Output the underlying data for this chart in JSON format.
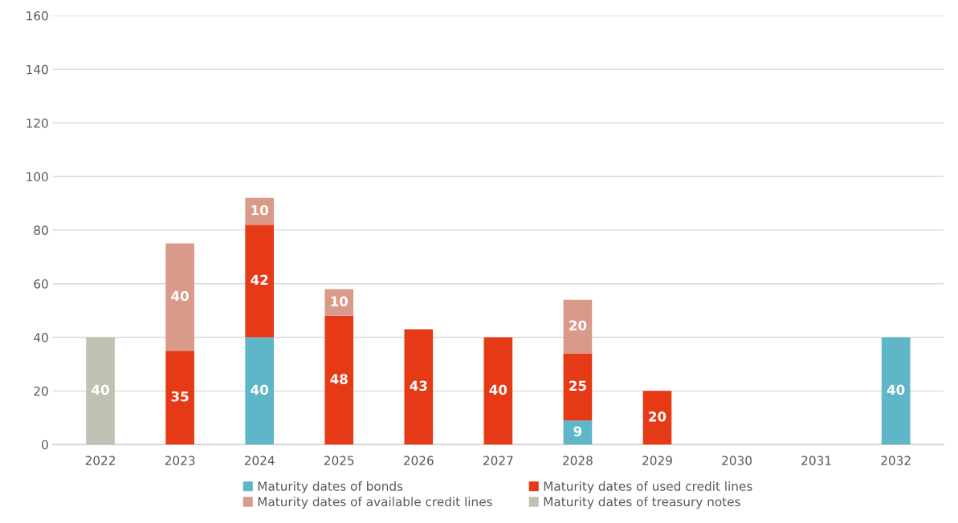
{
  "chart_data": {
    "type": "bar",
    "stacked": true,
    "categories": [
      "2022",
      "2023",
      "2024",
      "2025",
      "2026",
      "2027",
      "2028",
      "2029",
      "2030",
      "2031",
      "2032"
    ],
    "series": [
      {
        "name": "Maturity dates of bonds",
        "color": "#5fb6c8",
        "values": [
          null,
          null,
          40,
          null,
          null,
          null,
          9,
          null,
          null,
          null,
          40
        ]
      },
      {
        "name": "Maturity dates of used credit lines",
        "color": "#e63a16",
        "values": [
          null,
          35,
          42,
          48,
          43,
          40,
          25,
          20,
          null,
          null,
          null
        ]
      },
      {
        "name": "Maturity dates of available credit lines",
        "color": "#d99a8a",
        "values": [
          null,
          40,
          10,
          10,
          null,
          null,
          20,
          null,
          null,
          null,
          null
        ]
      },
      {
        "name": "Maturity dates of treasury notes",
        "color": "#c0c1b2",
        "values": [
          40,
          null,
          null,
          null,
          null,
          null,
          null,
          null,
          null,
          null,
          null
        ]
      }
    ],
    "ylim": [
      0,
      160
    ],
    "yticks": [
      0,
      20,
      40,
      60,
      80,
      100,
      120,
      140,
      160
    ],
    "grid": "y",
    "legend": "bottom",
    "data_labels": true
  }
}
